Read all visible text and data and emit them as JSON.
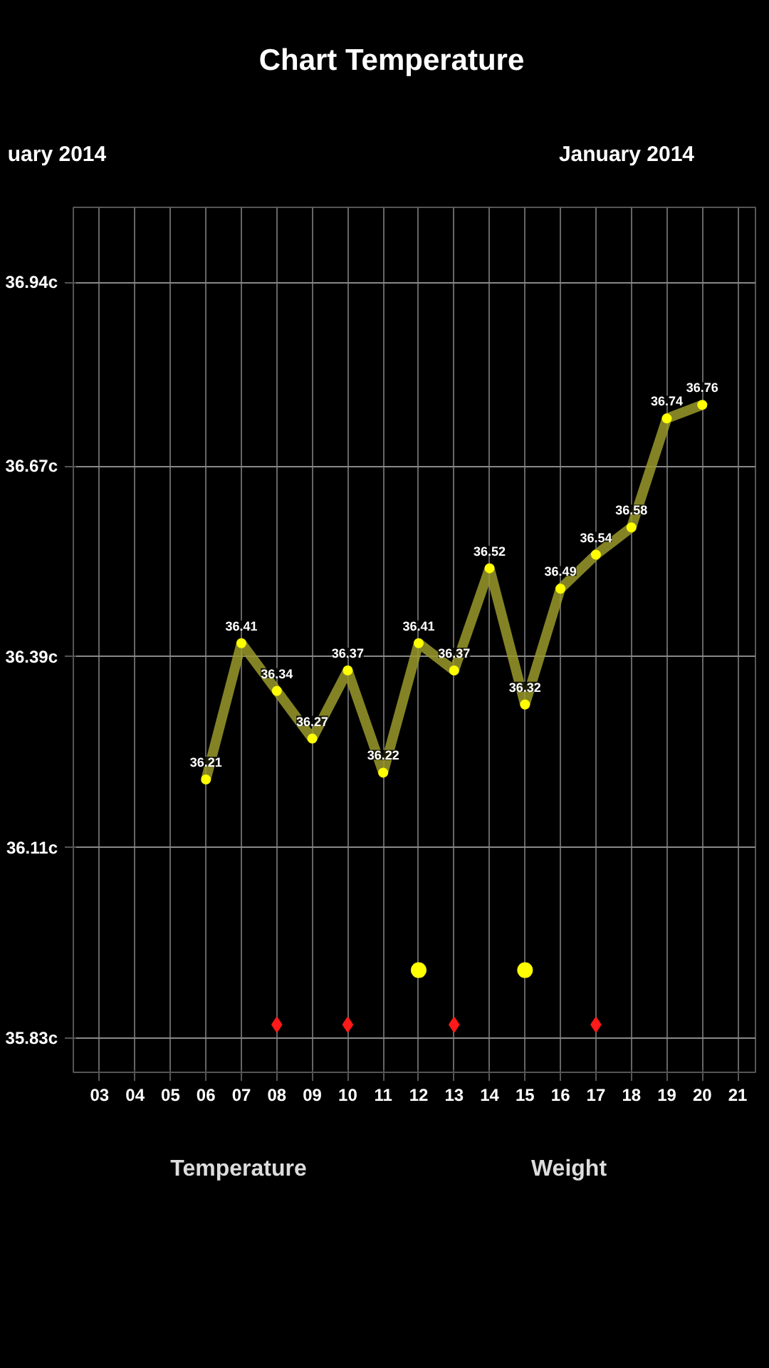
{
  "chart_data": {
    "type": "line",
    "title": "Chart Temperature",
    "annotations": [
      "uary 2014",
      "January 2014",
      "Temperature",
      "Weight"
    ],
    "xlim": [
      2.26,
      21.5
    ],
    "ylim": [
      35.78,
      37.05
    ],
    "xticks": [
      {
        "value": 3,
        "label": "03"
      },
      {
        "value": 4,
        "label": "04"
      },
      {
        "value": 5,
        "label": "05"
      },
      {
        "value": 6,
        "label": "06"
      },
      {
        "value": 7,
        "label": "07"
      },
      {
        "value": 8,
        "label": "08"
      },
      {
        "value": 9,
        "label": "09"
      },
      {
        "value": 10,
        "label": "10"
      },
      {
        "value": 11,
        "label": "11"
      },
      {
        "value": 12,
        "label": "12"
      },
      {
        "value": 13,
        "label": "13"
      },
      {
        "value": 14,
        "label": "14"
      },
      {
        "value": 15,
        "label": "15"
      },
      {
        "value": 16,
        "label": "16"
      },
      {
        "value": 17,
        "label": "17"
      },
      {
        "value": 18,
        "label": "18"
      },
      {
        "value": 19,
        "label": "19"
      },
      {
        "value": 20,
        "label": "20"
      },
      {
        "value": 21,
        "label": "21"
      }
    ],
    "yticks": [
      {
        "value": 35.83,
        "label": "35.83c"
      },
      {
        "value": 36.11,
        "label": "36.11c"
      },
      {
        "value": 36.39,
        "label": "36.39c"
      },
      {
        "value": 36.67,
        "label": "36.67c"
      },
      {
        "value": 36.94,
        "label": "36.94c"
      }
    ],
    "grid": true,
    "line_style": "solid",
    "series": [
      {
        "type": "line",
        "color": "#9a9a2c",
        "marker": "circle",
        "data_labels": true,
        "x": [
          6,
          7,
          8,
          9,
          10,
          11,
          12,
          13,
          14,
          15,
          16,
          17,
          18,
          19,
          20
        ],
        "values": [
          36.21,
          36.41,
          36.34,
          36.27,
          36.37,
          36.22,
          36.41,
          36.37,
          36.52,
          36.32,
          36.49,
          36.54,
          36.58,
          36.74,
          36.76
        ]
      },
      {
        "type": "scatter",
        "color": "#ffff00",
        "marker": "circle",
        "x": [
          12,
          15
        ],
        "values": [
          35.93,
          35.93
        ]
      },
      {
        "type": "scatter",
        "color": "#ff1a1a",
        "marker": "diamond",
        "x": [
          8,
          10,
          13,
          17
        ],
        "values": [
          35.85,
          35.85,
          35.85,
          35.85
        ]
      }
    ]
  }
}
